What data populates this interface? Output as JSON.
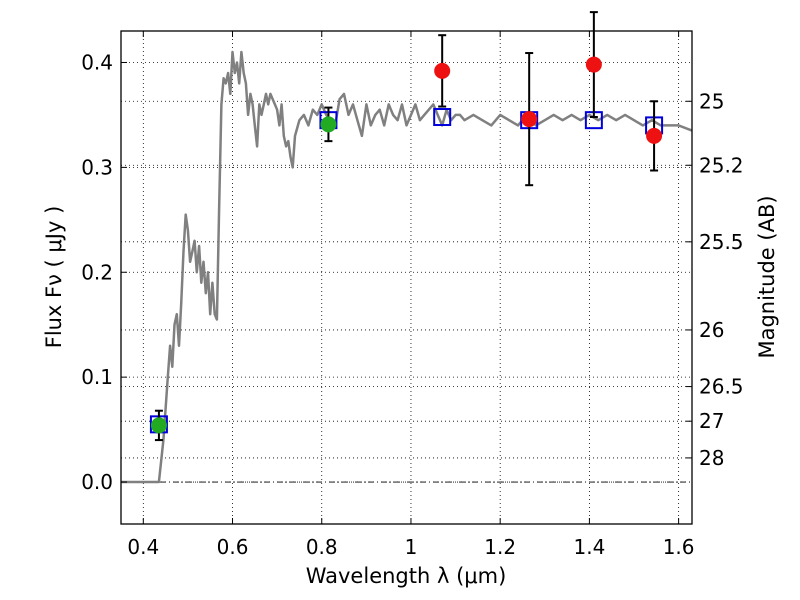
{
  "chart_data": {
    "type": "scatter",
    "xlabel": "Wavelength  λ (μm)",
    "ylabel_left": "Flux  Fν  ( μJy )",
    "ylabel_right": "Magnitude (AB)",
    "xlim": [
      0.35,
      1.63
    ],
    "ylim": [
      -0.04,
      0.43
    ],
    "grid": true,
    "x_ticks": [
      0.4,
      0.6,
      0.8,
      1.0,
      1.2,
      1.4,
      1.6
    ],
    "x_tick_labels": [
      "0.4",
      "0.6",
      "0.8",
      "1",
      "1.2",
      "1.4",
      "1.6"
    ],
    "y_ticks": [
      0.0,
      0.1,
      0.2,
      0.3,
      0.4
    ],
    "y_tick_labels": [
      "0.0",
      "0.1",
      "0.2",
      "0.3",
      "0.4"
    ],
    "right_ticks": [
      {
        "label": "25",
        "flux": 0.363
      },
      {
        "label": "25.2",
        "flux": 0.302
      },
      {
        "label": "25.5",
        "flux": 0.229
      },
      {
        "label": "26",
        "flux": 0.145
      },
      {
        "label": "26.5",
        "flux": 0.091
      },
      {
        "label": "27",
        "flux": 0.058
      },
      {
        "label": "28",
        "flux": 0.023
      }
    ],
    "zero_line": 0.0,
    "series": [
      {
        "kind": "line",
        "color": "#808080",
        "x": [
          0.35,
          0.42,
          0.435,
          0.445,
          0.455,
          0.46,
          0.465,
          0.47,
          0.475,
          0.48,
          0.485,
          0.49,
          0.495,
          0.5,
          0.505,
          0.51,
          0.515,
          0.52,
          0.525,
          0.53,
          0.535,
          0.54,
          0.545,
          0.55,
          0.555,
          0.56,
          0.565,
          0.57,
          0.575,
          0.58,
          0.585,
          0.59,
          0.595,
          0.6,
          0.605,
          0.61,
          0.615,
          0.62,
          0.625,
          0.63,
          0.635,
          0.64,
          0.645,
          0.65,
          0.655,
          0.66,
          0.665,
          0.67,
          0.675,
          0.68,
          0.685,
          0.69,
          0.695,
          0.7,
          0.705,
          0.71,
          0.715,
          0.72,
          0.725,
          0.73,
          0.735,
          0.74,
          0.75,
          0.76,
          0.77,
          0.78,
          0.79,
          0.8,
          0.81,
          0.82,
          0.83,
          0.84,
          0.85,
          0.86,
          0.87,
          0.88,
          0.89,
          0.9,
          0.91,
          0.92,
          0.93,
          0.94,
          0.95,
          0.96,
          0.97,
          0.98,
          0.99,
          1.0,
          1.01,
          1.02,
          1.03,
          1.04,
          1.05,
          1.06,
          1.07,
          1.08,
          1.09,
          1.1,
          1.11,
          1.12,
          1.14,
          1.16,
          1.18,
          1.2,
          1.22,
          1.24,
          1.26,
          1.28,
          1.3,
          1.32,
          1.34,
          1.36,
          1.38,
          1.4,
          1.42,
          1.44,
          1.46,
          1.48,
          1.5,
          1.52,
          1.54,
          1.56,
          1.58,
          1.6,
          1.63
        ],
        "y": [
          0.0,
          0.0,
          0.0,
          0.04,
          0.1,
          0.13,
          0.11,
          0.15,
          0.16,
          0.13,
          0.17,
          0.22,
          0.255,
          0.24,
          0.21,
          0.22,
          0.23,
          0.2,
          0.225,
          0.19,
          0.21,
          0.18,
          0.2,
          0.16,
          0.19,
          0.16,
          0.155,
          0.26,
          0.36,
          0.385,
          0.38,
          0.39,
          0.37,
          0.41,
          0.39,
          0.4,
          0.38,
          0.41,
          0.39,
          0.38,
          0.35,
          0.37,
          0.36,
          0.34,
          0.32,
          0.36,
          0.35,
          0.36,
          0.37,
          0.36,
          0.37,
          0.365,
          0.36,
          0.355,
          0.34,
          0.36,
          0.33,
          0.32,
          0.325,
          0.31,
          0.3,
          0.33,
          0.345,
          0.35,
          0.34,
          0.355,
          0.35,
          0.36,
          0.35,
          0.345,
          0.34,
          0.365,
          0.37,
          0.35,
          0.36,
          0.345,
          0.33,
          0.36,
          0.34,
          0.35,
          0.355,
          0.34,
          0.36,
          0.35,
          0.345,
          0.36,
          0.34,
          0.35,
          0.36,
          0.345,
          0.35,
          0.355,
          0.36,
          0.35,
          0.34,
          0.355,
          0.345,
          0.35,
          0.35,
          0.345,
          0.35,
          0.345,
          0.34,
          0.35,
          0.345,
          0.34,
          0.35,
          0.34,
          0.345,
          0.35,
          0.345,
          0.35,
          0.345,
          0.35,
          0.345,
          0.35,
          0.345,
          0.35,
          0.345,
          0.34,
          0.345,
          0.34,
          0.34,
          0.34,
          0.335
        ]
      },
      {
        "kind": "open-square",
        "color": "#0000dd",
        "points": [
          {
            "x": 0.435,
            "y": 0.055
          },
          {
            "x": 0.815,
            "y": 0.345
          },
          {
            "x": 1.07,
            "y": 0.348
          },
          {
            "x": 1.265,
            "y": 0.345
          },
          {
            "x": 1.41,
            "y": 0.345
          },
          {
            "x": 1.545,
            "y": 0.34
          }
        ]
      },
      {
        "kind": "filled-circle",
        "color": "#22aa22",
        "points": [
          {
            "x": 0.435,
            "y": 0.054,
            "err": 0.014
          },
          {
            "x": 0.815,
            "y": 0.341,
            "err": 0.016
          }
        ]
      },
      {
        "kind": "filled-circle",
        "color": "#ee1111",
        "points": [
          {
            "x": 1.07,
            "y": 0.392,
            "err": 0.034
          },
          {
            "x": 1.265,
            "y": 0.346,
            "err": 0.063
          },
          {
            "x": 1.41,
            "y": 0.398,
            "err": 0.05
          },
          {
            "x": 1.545,
            "y": 0.33,
            "err": 0.033
          }
        ]
      }
    ]
  }
}
